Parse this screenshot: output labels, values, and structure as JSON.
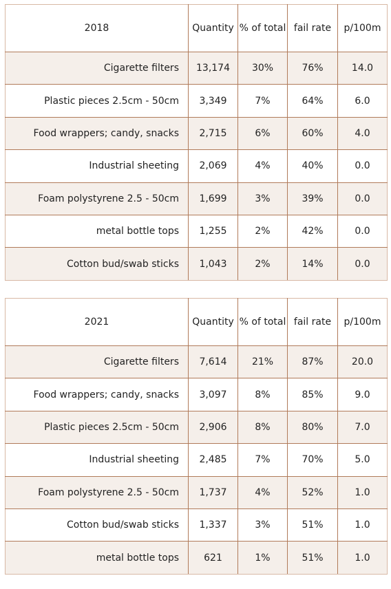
{
  "tables": [
    {
      "year": "2018",
      "headers": [
        "Quantity",
        "% of total",
        "fail rate",
        "p/100m"
      ],
      "rows": [
        {
          "item": "Cigarette filters",
          "quantity": "13,174",
          "pct_total": "30%",
          "fail_rate": "76%",
          "p100m": "14.0"
        },
        {
          "item": "Plastic pieces 2.5cm - 50cm",
          "quantity": "3,349",
          "pct_total": "7%",
          "fail_rate": "64%",
          "p100m": "6.0"
        },
        {
          "item": "Food wrappers; candy, snacks",
          "quantity": "2,715",
          "pct_total": "6%",
          "fail_rate": "60%",
          "p100m": "4.0"
        },
        {
          "item": "Industrial sheeting",
          "quantity": "2,069",
          "pct_total": "4%",
          "fail_rate": "40%",
          "p100m": "0.0"
        },
        {
          "item": "Foam polystyrene  2.5 - 50cm",
          "quantity": "1,699",
          "pct_total": "3%",
          "fail_rate": "39%",
          "p100m": "0.0"
        },
        {
          "item": "metal bottle tops",
          "quantity": "1,255",
          "pct_total": "2%",
          "fail_rate": "42%",
          "p100m": "0.0"
        },
        {
          "item": "Cotton bud/swab sticks",
          "quantity": "1,043",
          "pct_total": "2%",
          "fail_rate": "14%",
          "p100m": "0.0"
        }
      ]
    },
    {
      "year": "2021",
      "headers": [
        "Quantity",
        "% of total",
        "fail rate",
        "p/100m"
      ],
      "rows": [
        {
          "item": "Cigarette filters",
          "quantity": "7,614",
          "pct_total": "21%",
          "fail_rate": "87%",
          "p100m": "20.0"
        },
        {
          "item": "Food wrappers; candy, snacks",
          "quantity": "3,097",
          "pct_total": "8%",
          "fail_rate": "85%",
          "p100m": "9.0"
        },
        {
          "item": "Plastic pieces 2.5cm - 50cm",
          "quantity": "2,906",
          "pct_total": "8%",
          "fail_rate": "80%",
          "p100m": "7.0"
        },
        {
          "item": "Industrial sheeting",
          "quantity": "2,485",
          "pct_total": "7%",
          "fail_rate": "70%",
          "p100m": "5.0"
        },
        {
          "item": "Foam polystyrene  2.5 - 50cm",
          "quantity": "1,737",
          "pct_total": "4%",
          "fail_rate": "52%",
          "p100m": "1.0"
        },
        {
          "item": "Cotton bud/swab sticks",
          "quantity": "1,337",
          "pct_total": "3%",
          "fail_rate": "51%",
          "p100m": "1.0"
        },
        {
          "item": "metal bottle tops",
          "quantity": "621",
          "pct_total": "1%",
          "fail_rate": "51%",
          "p100m": "1.0"
        }
      ]
    }
  ],
  "colors": {
    "border": "#b07a59",
    "shaded_row": "#f5efea",
    "text": "#222222"
  }
}
